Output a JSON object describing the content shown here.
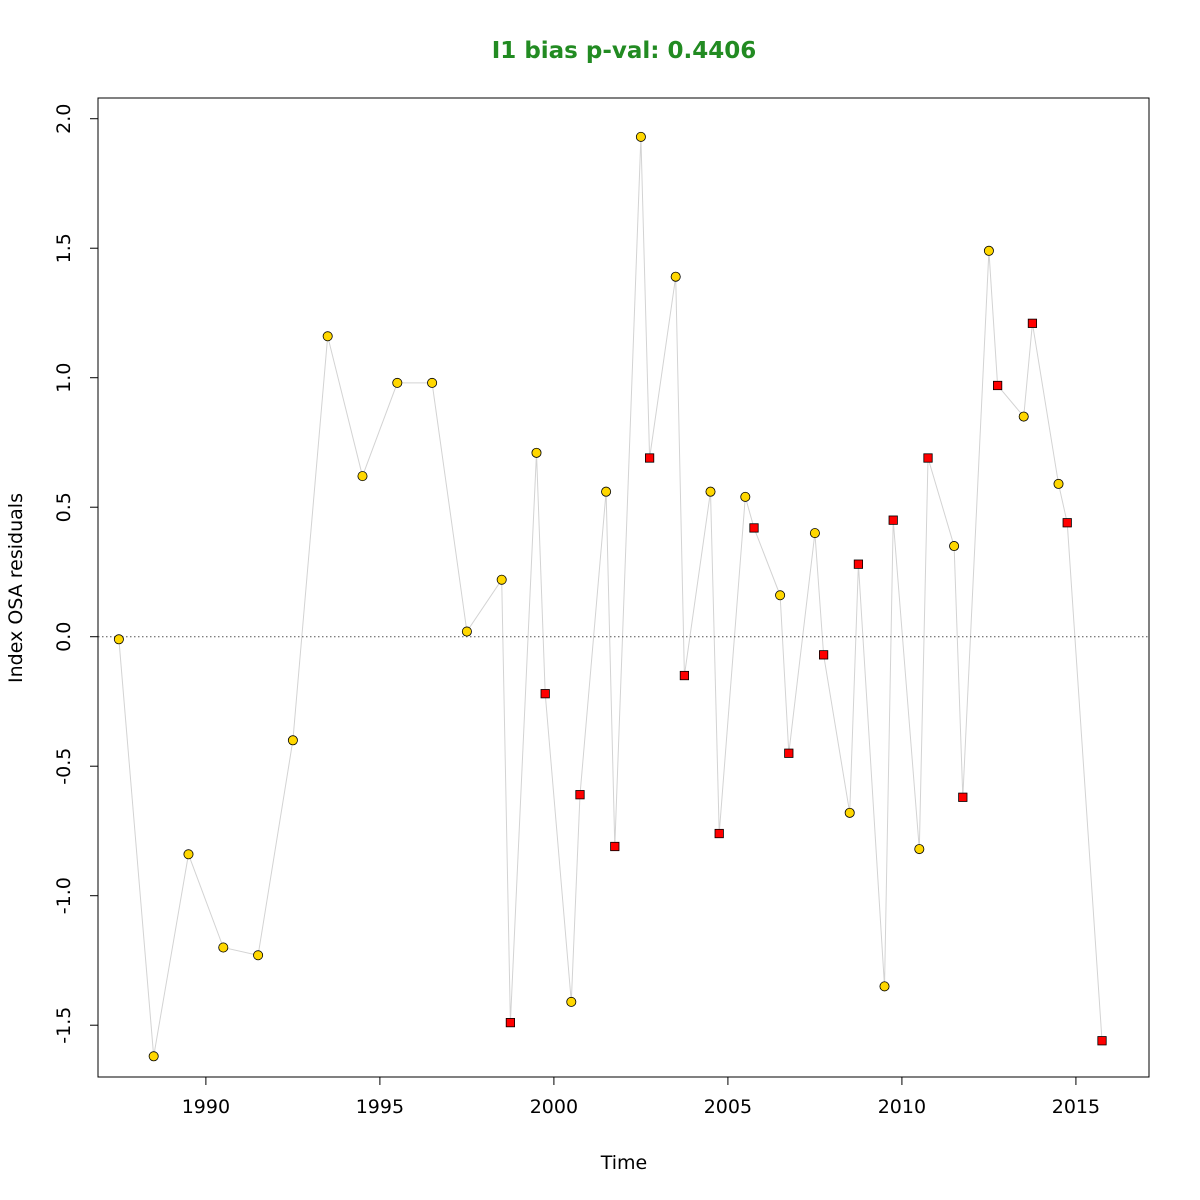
{
  "chart_data": {
    "type": "scatter",
    "title": "I1 bias p-val: 0.4406",
    "title_color": "#228B22",
    "xlabel": "Time",
    "ylabel": "Index OSA residuals",
    "xlim": [
      1986.9,
      2017.1
    ],
    "ylim": [
      -1.7,
      2.08
    ],
    "x_ticks": [
      1990,
      1995,
      2000,
      2005,
      2010,
      2015
    ],
    "y_ticks": [
      -1.5,
      -1.0,
      -0.5,
      0.0,
      0.5,
      1.0,
      1.5,
      2.0
    ],
    "y_tick_labels": [
      "-1.5",
      "-1.0",
      "-0.5",
      "0.0",
      "0.5",
      "1.0",
      "1.5",
      "2.0"
    ],
    "reference_line": 0,
    "line_color": "#d3d3d3",
    "grid": false,
    "series": [
      {
        "marker": "circle",
        "color": "#FFD700",
        "points": [
          [
            1987.5,
            -0.01
          ],
          [
            1988.5,
            -1.62
          ],
          [
            1989.5,
            -0.84
          ],
          [
            1990.5,
            -1.2
          ],
          [
            1991.5,
            -1.23
          ],
          [
            1992.5,
            -0.4
          ],
          [
            1993.5,
            1.16
          ],
          [
            1994.5,
            0.62
          ],
          [
            1995.5,
            0.98
          ],
          [
            1996.5,
            0.98
          ],
          [
            1997.5,
            0.02
          ],
          [
            1998.5,
            0.22
          ],
          [
            1999.5,
            0.71
          ],
          [
            2000.5,
            -1.41
          ],
          [
            2001.5,
            0.56
          ],
          [
            2002.5,
            1.93
          ],
          [
            2003.5,
            1.39
          ],
          [
            2004.5,
            0.56
          ],
          [
            2005.5,
            0.54
          ],
          [
            2006.5,
            0.16
          ],
          [
            2007.5,
            0.4
          ],
          [
            2008.5,
            -0.68
          ],
          [
            2009.5,
            -1.35
          ],
          [
            2010.5,
            -0.82
          ],
          [
            2011.5,
            0.35
          ],
          [
            2012.5,
            1.49
          ],
          [
            2013.5,
            0.85
          ],
          [
            2014.5,
            0.59
          ]
        ]
      },
      {
        "marker": "square",
        "color": "#FF0000",
        "points": [
          [
            1998.75,
            -1.49
          ],
          [
            1999.75,
            -0.22
          ],
          [
            2000.75,
            -0.61
          ],
          [
            2001.75,
            -0.81
          ],
          [
            2002.75,
            0.69
          ],
          [
            2003.75,
            -0.15
          ],
          [
            2004.75,
            -0.76
          ],
          [
            2005.75,
            0.42
          ],
          [
            2006.75,
            -0.45
          ],
          [
            2007.75,
            -0.07
          ],
          [
            2008.75,
            0.28
          ],
          [
            2009.75,
            0.45
          ],
          [
            2010.75,
            0.69
          ],
          [
            2011.75,
            -0.62
          ],
          [
            2012.75,
            0.97
          ],
          [
            2013.75,
            1.21
          ],
          [
            2014.75,
            0.44
          ],
          [
            2015.75,
            -1.56
          ]
        ]
      }
    ]
  }
}
